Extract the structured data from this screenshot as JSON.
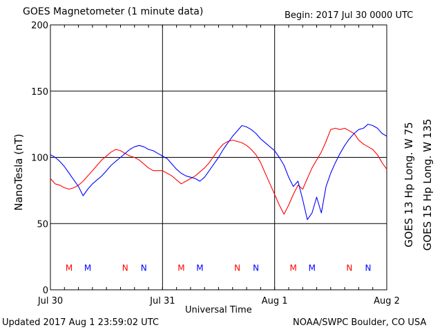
{
  "header": {
    "title": "GOES Magnetometer (1 minute data)",
    "begin": "Begin:  2017 Jul 30 0000 UTC"
  },
  "footer": {
    "updated": "Updated 2017 Aug  1 23:59:02 UTC",
    "credit": "NOAA/SWPC Boulder, CO USA"
  },
  "chart_data": {
    "type": "line",
    "ylabel": "NanoTesla (nT)",
    "xlabel": "Universal Time",
    "ylim": [
      0,
      200
    ],
    "yticks": [
      0,
      50,
      100,
      150,
      200
    ],
    "xlim": [
      0,
      72
    ],
    "x_unit": "hours since 2017 Jul 30 0000 UTC",
    "xticks": [
      {
        "x": 0,
        "label": "Jul 30"
      },
      {
        "x": 24,
        "label": "Jul 31"
      },
      {
        "x": 48,
        "label": "Aug 1"
      },
      {
        "x": 72,
        "label": "Aug 2"
      }
    ],
    "grid": true,
    "series": [
      {
        "name": "GOES 13 Hp  Long. W 75",
        "color": "#ff0000",
        "x": [
          0,
          1,
          2,
          3,
          4,
          5,
          6,
          7,
          8,
          9,
          10,
          11,
          12,
          13,
          14,
          15,
          16,
          17,
          18,
          19,
          20,
          21,
          22,
          23,
          24,
          25,
          26,
          27,
          28,
          29,
          30,
          31,
          32,
          33,
          34,
          35,
          36,
          37,
          38,
          39,
          40,
          41,
          42,
          43,
          44,
          45,
          46,
          47,
          48,
          49,
          50,
          51,
          52,
          53,
          54,
          55,
          56,
          57,
          58,
          59,
          60,
          61,
          62,
          63,
          64,
          65,
          66,
          67,
          68,
          69,
          70,
          71,
          72
        ],
        "y": [
          84,
          80,
          79,
          77,
          76,
          77,
          79,
          82,
          86,
          90,
          94,
          98,
          101,
          104,
          106,
          105,
          103,
          101,
          100,
          98,
          95,
          92,
          90,
          90,
          90,
          88,
          86,
          83,
          80,
          82,
          84,
          86,
          89,
          92,
          96,
          101,
          106,
          110,
          112,
          113,
          112,
          111,
          109,
          106,
          102,
          96,
          88,
          80,
          72,
          64,
          57,
          64,
          72,
          79,
          76,
          84,
          92,
          98,
          104,
          112,
          121,
          122,
          121,
          122,
          120,
          118,
          113,
          110,
          108,
          106,
          102,
          96,
          91
        ]
      },
      {
        "name": "GOES 15 Hp  Long. W 135",
        "color": "#0000ff",
        "x": [
          0,
          1,
          2,
          3,
          4,
          5,
          6,
          7,
          8,
          9,
          10,
          11,
          12,
          13,
          14,
          15,
          16,
          17,
          18,
          19,
          20,
          21,
          22,
          23,
          24,
          25,
          26,
          27,
          28,
          29,
          30,
          31,
          32,
          33,
          34,
          35,
          36,
          37,
          38,
          39,
          40,
          41,
          42,
          43,
          44,
          45,
          46,
          47,
          48,
          49,
          50,
          51,
          52,
          53,
          54,
          55,
          56,
          57,
          58,
          59,
          60,
          61,
          62,
          63,
          64,
          65,
          66,
          67,
          68,
          69,
          70,
          71,
          72
        ],
        "y": [
          102,
          100,
          97,
          93,
          88,
          83,
          78,
          71,
          76,
          80,
          83,
          86,
          90,
          94,
          97,
          100,
          103,
          106,
          108,
          109,
          108,
          106,
          105,
          103,
          101,
          99,
          95,
          91,
          88,
          86,
          85,
          84,
          82,
          85,
          90,
          95,
          100,
          106,
          111,
          116,
          120,
          124,
          123,
          121,
          118,
          114,
          111,
          108,
          105,
          100,
          94,
          85,
          78,
          82,
          68,
          53,
          58,
          70,
          58,
          78,
          88,
          96,
          103,
          109,
          114,
          118,
          121,
          122,
          125,
          124,
          122,
          118,
          116
        ]
      }
    ],
    "markers": [
      {
        "label": "M",
        "x": 4,
        "color": "#ff0000"
      },
      {
        "label": "M",
        "x": 8,
        "color": "#0000ff"
      },
      {
        "label": "N",
        "x": 16,
        "color": "#ff0000"
      },
      {
        "label": "N",
        "x": 20,
        "color": "#0000ff"
      },
      {
        "label": "M",
        "x": 28,
        "color": "#ff0000"
      },
      {
        "label": "M",
        "x": 32,
        "color": "#0000ff"
      },
      {
        "label": "N",
        "x": 40,
        "color": "#ff0000"
      },
      {
        "label": "N",
        "x": 44,
        "color": "#0000ff"
      },
      {
        "label": "M",
        "x": 52,
        "color": "#ff0000"
      },
      {
        "label": "M",
        "x": 56,
        "color": "#0000ff"
      },
      {
        "label": "N",
        "x": 64,
        "color": "#ff0000"
      },
      {
        "label": "N",
        "x": 68,
        "color": "#0000ff"
      }
    ],
    "marker_y": 17
  }
}
